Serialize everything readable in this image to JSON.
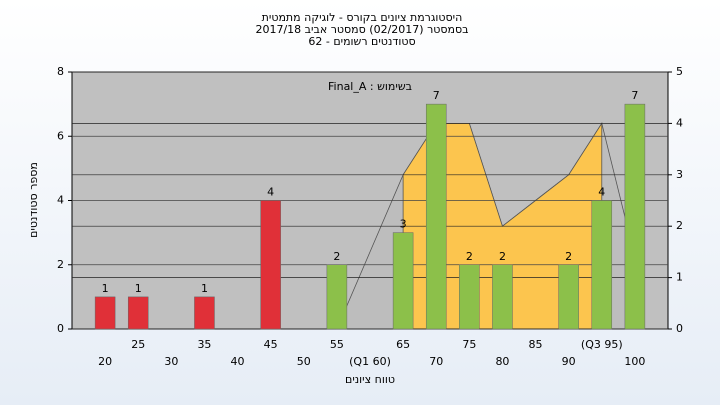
{
  "chart_data": {
    "type": "bar",
    "title": [
      "היסטוגרמת ציונים בקורס - לוגיקה מתמטית",
      "בסמסטר  (02/2017)  סמסטר אביב 2017/18",
      "סטודנטים רשומים - 62"
    ],
    "annotation": "Final_A : בשימוש",
    "xlabel": "טווח ציונים",
    "ylabel": "מספר סטודנטים",
    "categories": [
      "20",
      "25",
      "30",
      "35",
      "40",
      "45",
      "50",
      "55",
      "(Q1 60)",
      "65",
      "70",
      "75",
      "80",
      "85",
      "90",
      "(Q3 95)",
      "100"
    ],
    "values": [
      1,
      1,
      null,
      1,
      null,
      4,
      null,
      2,
      null,
      3,
      7,
      2,
      2,
      null,
      2,
      4,
      7
    ],
    "colors": [
      "#e03038",
      "#e03038",
      "#e03038",
      "#e03038",
      "#e03038",
      "#e03038",
      "#e03038",
      "#8cc04a",
      "#8cc04a",
      "#8cc04a",
      "#8cc04a",
      "#8cc04a",
      "#8cc04a",
      "#8cc04a",
      "#8cc04a",
      "#8cc04a",
      "#8cc04a"
    ],
    "ylim": [
      0,
      8
    ],
    "yticks": [
      0,
      2,
      4,
      6,
      8
    ],
    "y2lim": [
      0,
      5
    ],
    "y2ticks": [
      0,
      1,
      2,
      3,
      4,
      5
    ],
    "series": [
      {
        "type": "area",
        "axis": "y2",
        "color": "#bdbdbd",
        "values": [
          null,
          null,
          null,
          null,
          null,
          null,
          null,
          0,
          1.5,
          3,
          4,
          4,
          2,
          2.5,
          3,
          4,
          1.4
        ]
      },
      {
        "type": "area",
        "axis": "y2",
        "color": "#fcc54e",
        "values": [
          null,
          null,
          null,
          null,
          null,
          null,
          null,
          null,
          null,
          3,
          4,
          4,
          2,
          2.5,
          3,
          4,
          null
        ]
      }
    ],
    "grid": true
  }
}
